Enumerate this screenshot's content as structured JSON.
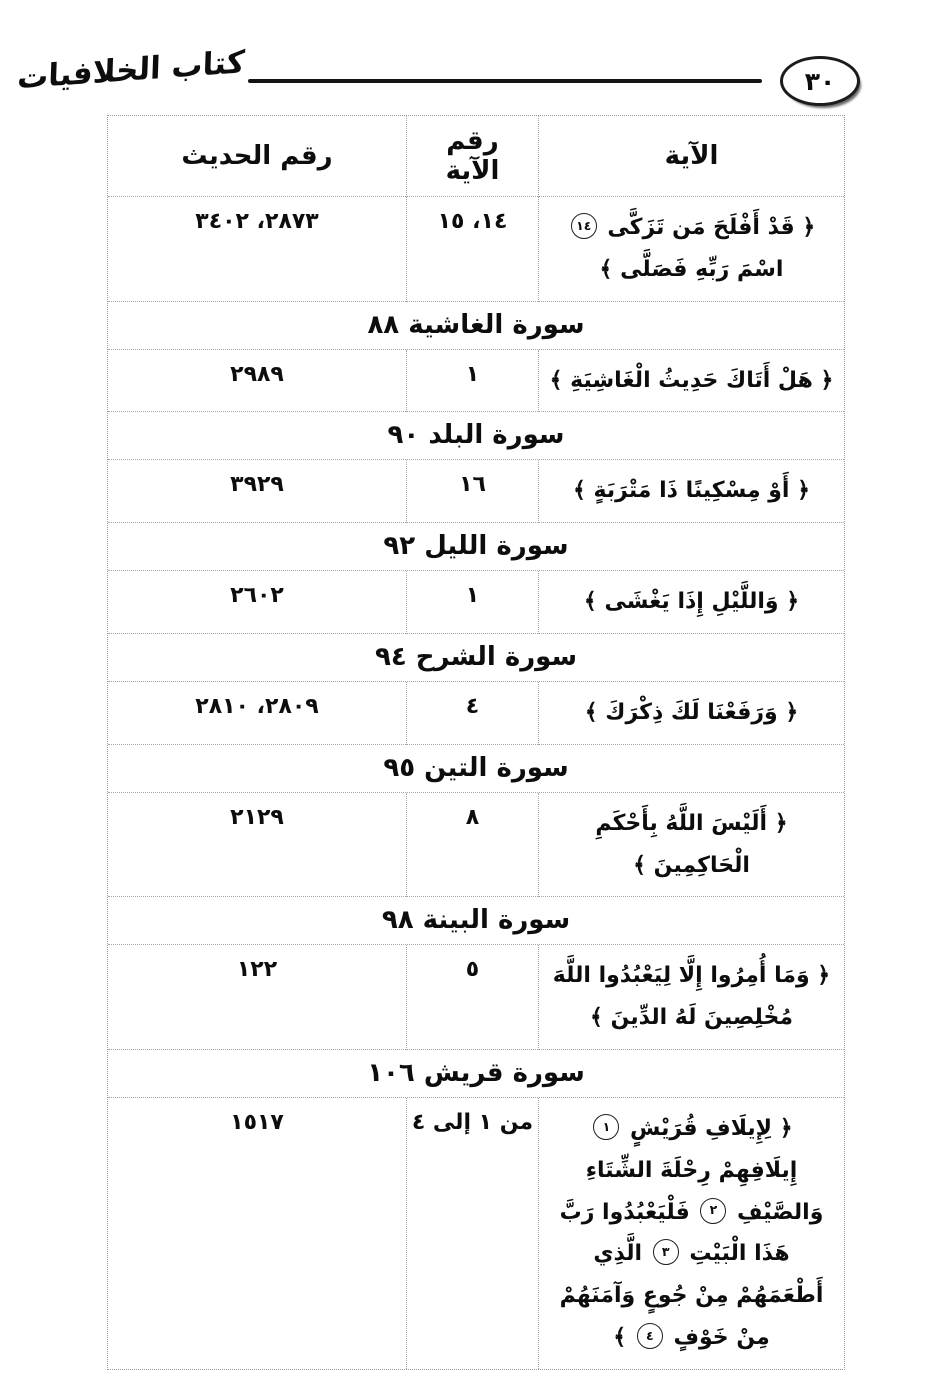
{
  "header": {
    "book_title": "كتاب الخلافيات",
    "page_number": "٣٠"
  },
  "colors": {
    "ink": "#0d0d0d",
    "table_border": "#9a9a9a"
  },
  "table": {
    "headers": {
      "ayah": "الآية",
      "ayah_number": "رقم الآية",
      "hadith_number": "رقم الحديث"
    },
    "rows": [
      {
        "kind": "entry",
        "ayah": [
          {
            "t": "﴿ قَدْ أَفْلَحَ مَن تَزَكَّى "
          },
          {
            "m": "١٤"
          },
          {
            "t": " اسْمَ رَبِّهِ فَصَلَّى ﴾"
          }
        ],
        "ayah_no": "١٤، ١٥",
        "hadith_no": "٢٨٧٣، ٣٤٠٢"
      },
      {
        "kind": "section",
        "title": "سورة الغاشية ٨٨"
      },
      {
        "kind": "entry",
        "ayah": [
          {
            "t": "﴿ هَلْ أَتَاكَ حَدِيثُ الْغَاشِيَةِ ﴾"
          }
        ],
        "ayah_no": "١",
        "hadith_no": "٢٩٨٩"
      },
      {
        "kind": "section",
        "title": "سورة البلد ٩٠"
      },
      {
        "kind": "entry",
        "ayah": [
          {
            "t": "﴿ أَوْ مِسْكِينًا ذَا مَتْرَبَةٍ ﴾"
          }
        ],
        "ayah_no": "١٦",
        "hadith_no": "٣٩٢٩"
      },
      {
        "kind": "section",
        "title": "سورة الليل ٩٢"
      },
      {
        "kind": "entry",
        "ayah": [
          {
            "t": "﴿ وَاللَّيْلِ إِذَا يَغْشَى ﴾"
          }
        ],
        "ayah_no": "١",
        "hadith_no": "٢٦٠٢"
      },
      {
        "kind": "section",
        "title": "سورة الشرح ٩٤"
      },
      {
        "kind": "entry",
        "ayah": [
          {
            "t": "﴿ وَرَفَعْنَا لَكَ ذِكْرَكَ ﴾"
          }
        ],
        "ayah_no": "٤",
        "hadith_no": "٢٨٠٩، ٢٨١٠"
      },
      {
        "kind": "section",
        "title": "سورة التين ٩٥"
      },
      {
        "kind": "entry",
        "ayah": [
          {
            "t": "﴿ أَلَيْسَ اللَّهُ بِأَحْكَمِ الْحَاكِمِينَ ﴾"
          }
        ],
        "ayah_no": "٨",
        "hadith_no": "٢١٢٩"
      },
      {
        "kind": "section",
        "title": "سورة البينة ٩٨"
      },
      {
        "kind": "entry",
        "ayah": [
          {
            "t": "﴿ وَمَا أُمِرُوا إِلَّا لِيَعْبُدُوا اللَّهَ مُخْلِصِينَ لَهُ الدِّينَ ﴾"
          }
        ],
        "ayah_no": "٥",
        "hadith_no": "١٢٢"
      },
      {
        "kind": "section",
        "title": "سورة قريش ١٠٦"
      },
      {
        "kind": "entry",
        "ayah": [
          {
            "t": "﴿ لِإِيلَافِ قُرَيْشٍ "
          },
          {
            "m": "١"
          },
          {
            "t": " إِيلَافِهِمْ رِحْلَةَ الشِّتَاءِ وَالصَّيْفِ "
          },
          {
            "m": "٢"
          },
          {
            "t": " فَلْيَعْبُدُوا رَبَّ هَذَا الْبَيْتِ "
          },
          {
            "m": "٣"
          },
          {
            "t": " الَّذِي أَطْعَمَهُمْ مِنْ جُوعٍ وَآمَنَهُمْ مِنْ خَوْفٍ "
          },
          {
            "m": "٤"
          },
          {
            "t": " ﴾"
          }
        ],
        "ayah_no": "من ١ إلى ٤",
        "hadith_no": "١٥١٧"
      }
    ]
  }
}
